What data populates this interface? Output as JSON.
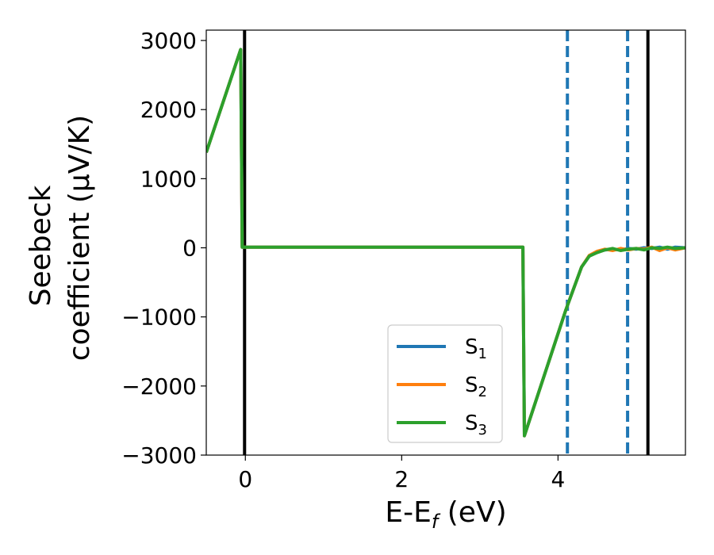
{
  "chart_data": {
    "type": "line",
    "xlabel": "E-E",
    "xlabel_sub": "f",
    "xlabel_unit": " (eV)",
    "ylabel_line1": "Seebeck",
    "ylabel_line2": "coefficient  (μV/K)",
    "xlim": [
      -0.5,
      5.63
    ],
    "ylim": [
      -3000,
      3150
    ],
    "xticks": [
      0,
      2,
      4
    ],
    "xtick_labels": [
      "0",
      "2",
      "4"
    ],
    "yticks": [
      3000,
      2000,
      1000,
      0,
      -1000,
      -2000,
      -3000
    ],
    "ytick_labels": [
      "3000",
      "2000",
      "1000",
      "0",
      "−1000",
      "−2000",
      "−3000"
    ],
    "vlines_solid": [
      -0.01,
      5.15
    ],
    "vlines_dashed": [
      4.12,
      4.89
    ],
    "colors": {
      "S1": "#1f77b4",
      "S2": "#ff7f0e",
      "S3": "#2ca02c",
      "vline_solid": "#000000",
      "vline_dashed": "#1f77b4"
    },
    "legend_position": "lower-right",
    "series": [
      {
        "name": "S",
        "sub": "1",
        "color": "#1f77b4",
        "x": [
          -0.5,
          -0.06,
          -0.04,
          3.55,
          3.55,
          3.57,
          4.1,
          4.3,
          4.4,
          4.5,
          4.6,
          4.7,
          4.8,
          4.9,
          5.0,
          5.1,
          5.2,
          5.3,
          5.4,
          5.5,
          5.63
        ],
        "y": [
          1380,
          2870,
          10,
          10,
          0,
          -2720,
          -900,
          -280,
          -120,
          -60,
          -30,
          -20,
          -30,
          -10,
          -20,
          0,
          -10,
          10,
          -20,
          10,
          0
        ]
      },
      {
        "name": "S",
        "sub": "2",
        "color": "#ff7f0e",
        "x": [
          -0.5,
          -0.06,
          -0.04,
          3.55,
          3.55,
          3.57,
          4.1,
          4.3,
          4.4,
          4.5,
          4.6,
          4.7,
          4.8,
          4.9,
          5.0,
          5.1,
          5.2,
          5.3,
          5.4,
          5.5,
          5.63
        ],
        "y": [
          1380,
          2870,
          10,
          10,
          0,
          -2720,
          -900,
          -280,
          -110,
          -50,
          -20,
          -40,
          -10,
          -30,
          -10,
          -20,
          10,
          -40,
          0,
          -30,
          0
        ]
      },
      {
        "name": "S",
        "sub": "3",
        "color": "#2ca02c",
        "x": [
          -0.5,
          -0.06,
          -0.04,
          3.55,
          3.55,
          3.57,
          4.1,
          4.3,
          4.4,
          4.5,
          4.6,
          4.7,
          4.8,
          4.9,
          5.0,
          5.1,
          5.2,
          5.3,
          5.4,
          5.5,
          5.63
        ],
        "y": [
          1380,
          2870,
          10,
          10,
          0,
          -2720,
          -900,
          -280,
          -120,
          -70,
          -30,
          -10,
          -40,
          -20,
          -10,
          -30,
          0,
          -10,
          10,
          -10,
          0
        ]
      }
    ]
  }
}
